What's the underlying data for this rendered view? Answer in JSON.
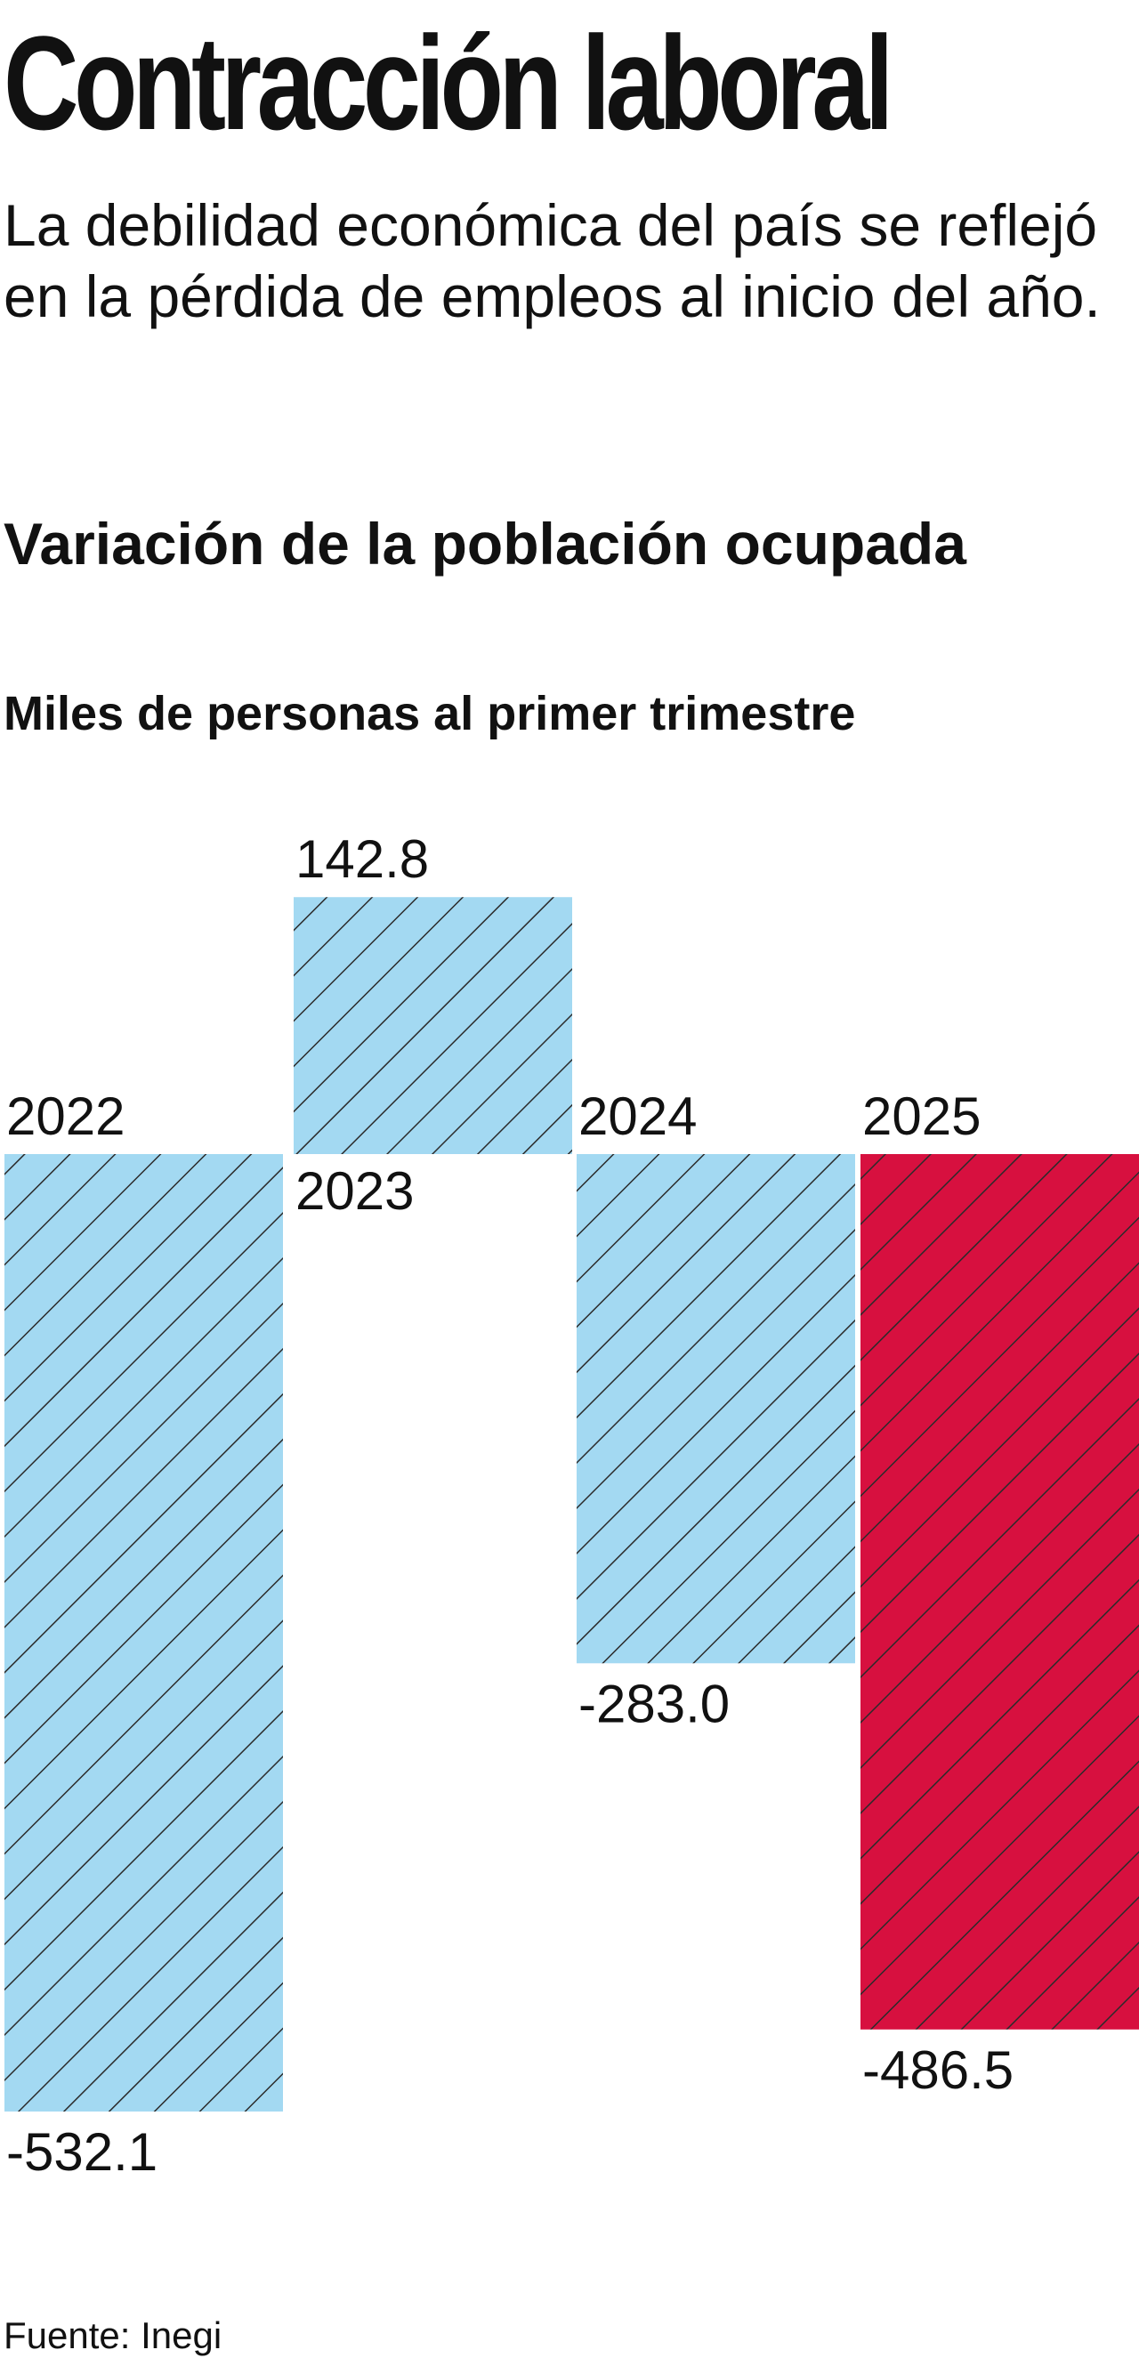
{
  "headline": "Contracción laboral",
  "dek": "La debilidad económica del país se reflejó en la pérdida de empleos al inicio del año.",
  "source": "Fuente: Inegi",
  "colors": {
    "negative_fill": "#a3d9f2",
    "positive_fill": "#a3d9f2",
    "highlight_fill": "#d7103f",
    "hatch_stroke": "#2b2b2b"
  },
  "chart_data": {
    "type": "bar",
    "title": "Variación de la población ocupada",
    "subtitle": "Miles de personas al primer trimestre",
    "xlabel": "",
    "ylabel": "",
    "categories": [
      "2022",
      "2023",
      "2024",
      "2025"
    ],
    "values": [
      -532.1,
      142.8,
      -283.0,
      -486.5
    ],
    "value_labels": [
      "-532.1",
      "142.8",
      "-283.0",
      "-486.5"
    ],
    "highlight": "2025",
    "ylim": [
      -532.1,
      142.8
    ],
    "grid": false,
    "legend": "none"
  }
}
